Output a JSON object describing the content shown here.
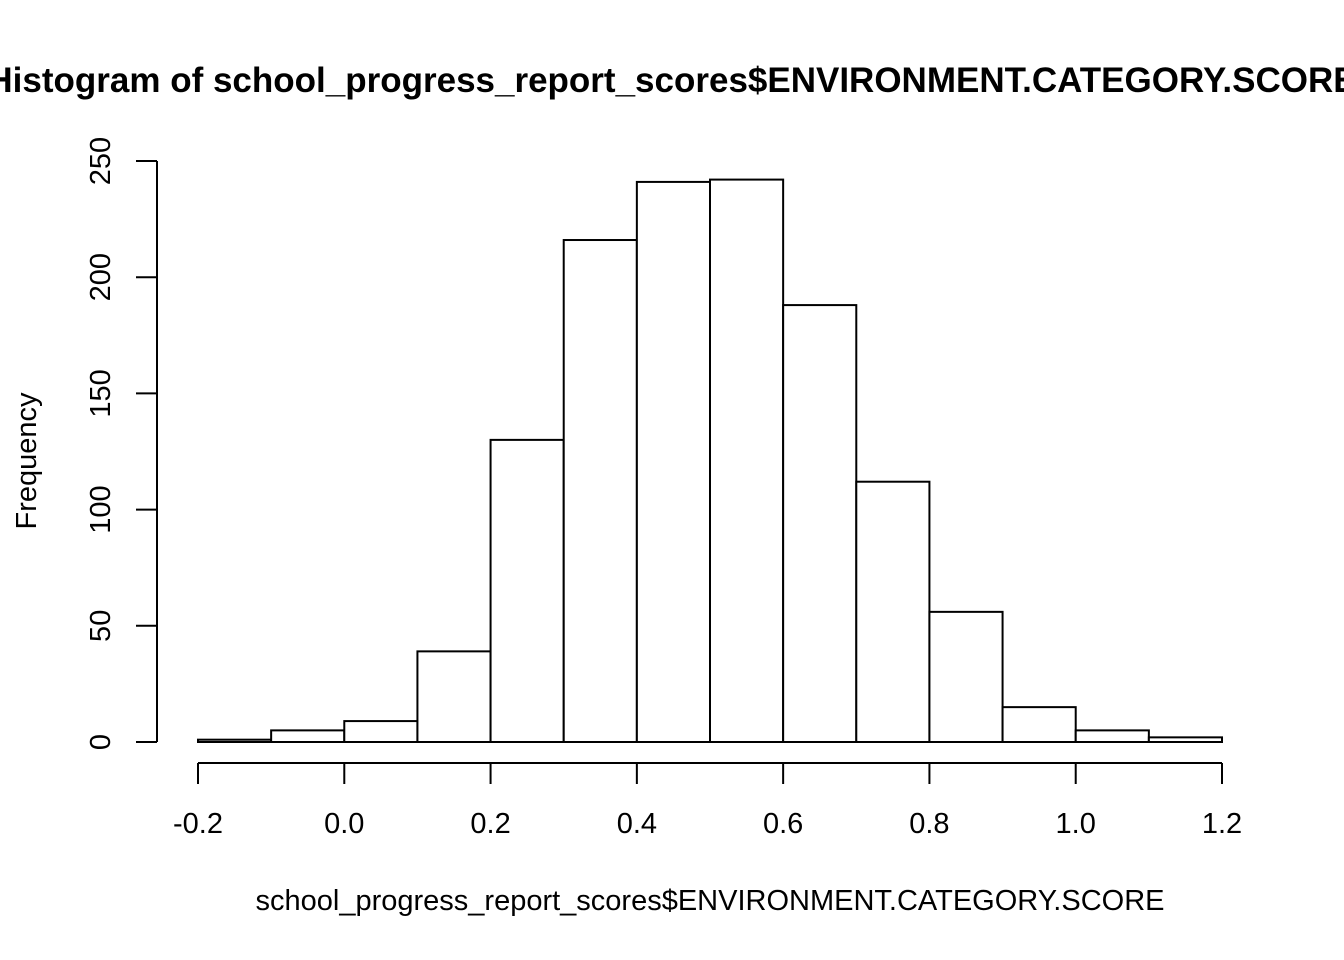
{
  "chart_data": {
    "type": "bar",
    "title": "Histogram of school_progress_report_scores$ENVIRONMENT.CATEGORY.SCORE",
    "xlabel": "school_progress_report_scores$ENVIRONMENT.CATEGORY.SCORE",
    "ylabel": "Frequency",
    "bins": [
      {
        "from": -0.2,
        "to": -0.1,
        "count": 1
      },
      {
        "from": -0.1,
        "to": 0.0,
        "count": 5
      },
      {
        "from": 0.0,
        "to": 0.1,
        "count": 9
      },
      {
        "from": 0.1,
        "to": 0.2,
        "count": 39
      },
      {
        "from": 0.2,
        "to": 0.3,
        "count": 130
      },
      {
        "from": 0.3,
        "to": 0.4,
        "count": 216
      },
      {
        "from": 0.4,
        "to": 0.5,
        "count": 241
      },
      {
        "from": 0.5,
        "to": 0.6,
        "count": 242
      },
      {
        "from": 0.6,
        "to": 0.7,
        "count": 188
      },
      {
        "from": 0.7,
        "to": 0.8,
        "count": 112
      },
      {
        "from": 0.8,
        "to": 0.9,
        "count": 56
      },
      {
        "from": 0.9,
        "to": 1.0,
        "count": 15
      },
      {
        "from": 1.0,
        "to": 1.1,
        "count": 5
      },
      {
        "from": 1.1,
        "to": 1.2,
        "count": 2
      }
    ],
    "xlim": [
      -0.2,
      1.2
    ],
    "ylim": [
      0,
      250
    ],
    "x_ticks": [
      -0.2,
      0.0,
      0.2,
      0.4,
      0.6,
      0.8,
      1.0,
      1.2
    ],
    "x_tick_labels": [
      "-0.2",
      "0.0",
      "0.2",
      "0.4",
      "0.6",
      "0.8",
      "1.0",
      "1.2"
    ],
    "y_ticks": [
      0,
      50,
      100,
      150,
      200,
      250
    ],
    "y_tick_labels": [
      "0",
      "50",
      "100",
      "150",
      "200",
      "250"
    ],
    "grid": false,
    "legend": "none",
    "colors": {
      "bar_fill": "#ffffff",
      "bar_stroke": "#000000",
      "axis": "#000000",
      "background": "#ffffff"
    }
  }
}
